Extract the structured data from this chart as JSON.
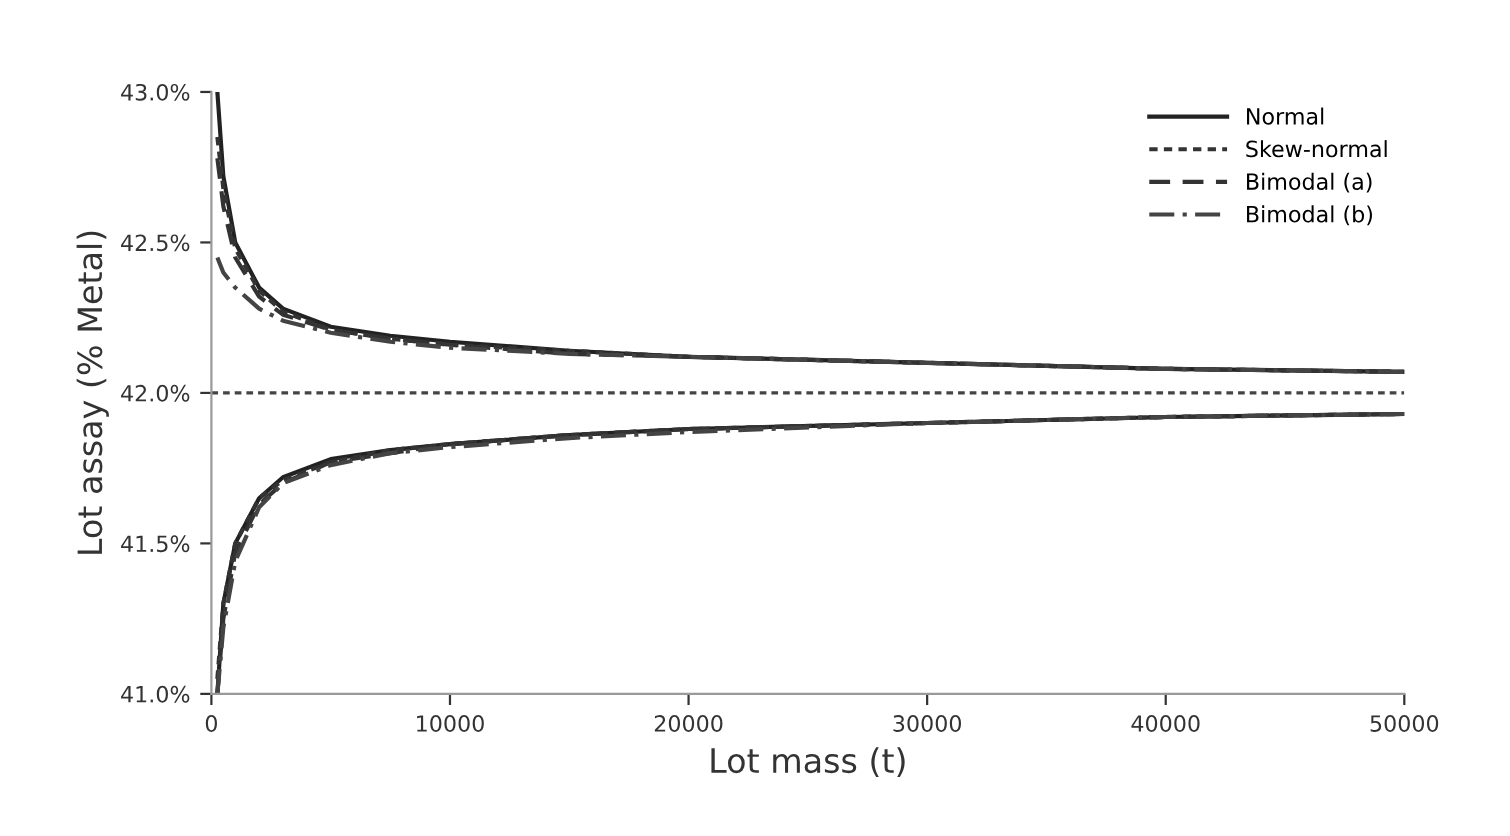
{
  "chart_data": {
    "type": "line",
    "xlabel": "Lot mass (t)",
    "ylabel": "Lot assay (% Metal)",
    "xlim": [
      0,
      50000
    ],
    "xticks": [
      0,
      10000,
      20000,
      30000,
      40000,
      50000
    ],
    "ylim": [
      41.0,
      43.0
    ],
    "yticks": [
      {
        "value": 41.0,
        "label": "41.0%"
      },
      {
        "value": 41.5,
        "label": "41.5%"
      },
      {
        "value": 42.0,
        "label": "42.0%"
      },
      {
        "value": 42.5,
        "label": "42.5%"
      },
      {
        "value": 43.0,
        "label": "43.0%"
      }
    ],
    "x": [
      250,
      500,
      1000,
      2000,
      3000,
      5000,
      7500,
      10000,
      15000,
      20000,
      30000,
      40000,
      50000
    ],
    "grid": false,
    "legend": "top right",
    "marker": "none",
    "ref_lines": [
      {
        "axis": "y",
        "value": 42.0,
        "color": "#444444",
        "line_style": "dotted"
      }
    ],
    "series": [
      {
        "name": "Normal",
        "color": "#222222",
        "line_style": "solid",
        "values": [
          43.0,
          42.72,
          42.5,
          42.35,
          42.28,
          42.22,
          42.19,
          42.17,
          42.14,
          42.12,
          42.1,
          42.08,
          42.07
        ]
      },
      {
        "color": "#222222",
        "line_style": "solid",
        "values": [
          41.0,
          41.3,
          41.5,
          41.65,
          41.72,
          41.78,
          41.81,
          41.83,
          41.86,
          41.88,
          41.9,
          41.92,
          41.93
        ]
      },
      {
        "name": "Skew-normal",
        "color": "#333333",
        "line_style": "dotted",
        "values": [
          42.85,
          42.68,
          42.48,
          42.34,
          42.27,
          42.21,
          42.18,
          42.16,
          42.14,
          42.12,
          42.1,
          42.08,
          42.07
        ]
      },
      {
        "color": "#333333",
        "line_style": "dotted",
        "values": [
          41.05,
          41.3,
          41.5,
          41.65,
          41.71,
          41.77,
          41.81,
          41.83,
          41.86,
          41.88,
          41.9,
          41.92,
          41.93
        ]
      },
      {
        "name": "Bimodal (a)",
        "color": "#333333",
        "line_style": "dashed",
        "values": [
          42.78,
          42.62,
          42.45,
          42.32,
          42.26,
          42.21,
          42.18,
          42.16,
          42.13,
          42.12,
          42.1,
          42.08,
          42.07
        ]
      },
      {
        "color": "#333333",
        "line_style": "dashed",
        "values": [
          41.0,
          41.25,
          41.47,
          41.63,
          41.7,
          41.77,
          41.8,
          41.83,
          41.86,
          41.88,
          41.9,
          41.92,
          41.93
        ]
      },
      {
        "name": "Bimodal (b)",
        "color": "#444444",
        "line_style": "dashdot",
        "values": [
          42.45,
          42.4,
          42.35,
          42.28,
          42.24,
          42.2,
          42.17,
          42.15,
          42.13,
          42.12,
          42.1,
          42.08,
          42.07
        ]
      },
      {
        "color": "#444444",
        "line_style": "dashdot",
        "values": [
          41.0,
          41.22,
          41.44,
          41.62,
          41.7,
          41.76,
          41.8,
          41.82,
          41.85,
          41.87,
          41.9,
          41.92,
          41.93
        ]
      }
    ]
  }
}
